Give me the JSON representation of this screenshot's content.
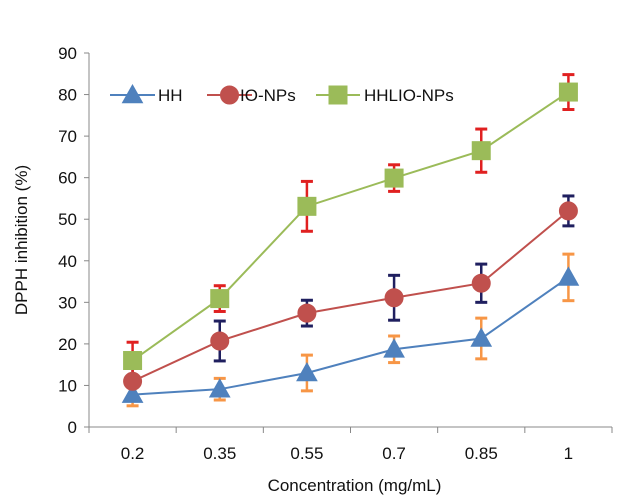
{
  "chart_data": {
    "type": "line",
    "title": "",
    "xlabel": "Concentration (mg/mL)",
    "ylabel": "DPPH inhibition (%)",
    "categories": [
      "0.2",
      "0.35",
      "0.55",
      "0.7",
      "0.85",
      "1"
    ],
    "ylim": [
      0,
      90
    ],
    "yticks": [
      0,
      10,
      20,
      30,
      40,
      50,
      60,
      70,
      80,
      90
    ],
    "grid": false,
    "legend_position": "top-left",
    "series": [
      {
        "name": "HH",
        "marker": "triangle",
        "color": "#4f81bd",
        "error_color": "#f79646",
        "values": [
          7.8,
          9.1,
          13,
          18.7,
          21.3,
          36
        ],
        "errors": [
          2.7,
          2.6,
          4.3,
          3.2,
          4.9,
          5.6
        ]
      },
      {
        "name": "IO-NPs",
        "marker": "circle",
        "color": "#c0504d",
        "error_color": "#1f1f5f",
        "values": [
          11,
          20.7,
          27.4,
          31.1,
          34.6,
          52
        ],
        "errors": [
          4.4,
          4.8,
          3.1,
          5.4,
          4.6,
          3.6
        ]
      },
      {
        "name": "HHLIO-NPs",
        "marker": "square",
        "color": "#9bbb59",
        "error_color": "#e02020",
        "values": [
          16,
          30.9,
          53.1,
          59.9,
          66.5,
          80.6
        ],
        "errors": [
          4.4,
          3.1,
          6,
          3.2,
          5.2,
          4.2
        ]
      }
    ]
  }
}
